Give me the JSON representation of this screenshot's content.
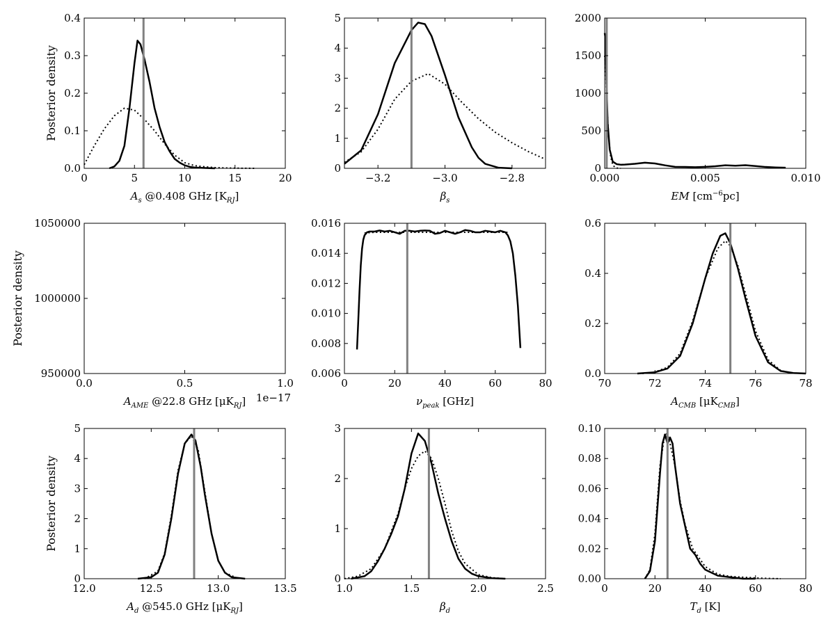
{
  "chart_data": [
    {
      "type": "line",
      "xlabel": "A_s @0.408 GHz [K_RJ]",
      "xlabel_parts": [
        {
          "t": "A",
          "i": true
        },
        {
          "t": "s",
          "sub": true
        },
        {
          "t": " @0.408 GHz [K"
        },
        {
          "t": "RJ",
          "sub": true
        },
        {
          "t": "]"
        }
      ],
      "ylabel": "Posterior density",
      "xlim": [
        0,
        20
      ],
      "ylim": [
        0,
        0.4
      ],
      "xticks": [
        0,
        5,
        10,
        15,
        20
      ],
      "xtick_labels": [
        "0",
        "5",
        "10",
        "15",
        "20"
      ],
      "yticks": [
        0,
        0.1,
        0.2,
        0.3,
        0.4
      ],
      "ytick_labels": [
        "0.0",
        "0.1",
        "0.2",
        "0.3",
        "0.4"
      ],
      "truth": 5.9,
      "series": [
        {
          "style": "solid",
          "x": [
            2.5,
            3.0,
            3.5,
            4.0,
            4.5,
            5.0,
            5.3,
            5.6,
            6.0,
            6.5,
            7.0,
            7.5,
            8.0,
            8.5,
            9.0,
            9.5,
            10.0,
            10.5,
            11.0,
            12.0,
            13.0
          ],
          "y": [
            0.0,
            0.005,
            0.02,
            0.06,
            0.16,
            0.28,
            0.34,
            0.33,
            0.29,
            0.23,
            0.16,
            0.11,
            0.07,
            0.045,
            0.025,
            0.015,
            0.008,
            0.004,
            0.002,
            0.001,
            0.0
          ]
        },
        {
          "style": "dotted",
          "x": [
            0,
            1,
            2,
            3,
            4,
            5,
            6,
            7,
            8,
            9,
            10,
            11,
            12,
            13,
            14,
            15,
            16,
            17
          ],
          "y": [
            0.01,
            0.06,
            0.105,
            0.14,
            0.16,
            0.155,
            0.13,
            0.1,
            0.065,
            0.035,
            0.015,
            0.007,
            0.004,
            0.002,
            0.001,
            0.0005,
            0.0002,
            0.0
          ]
        }
      ]
    },
    {
      "type": "line",
      "xlabel": "β_s",
      "xlabel_parts": [
        {
          "t": "β",
          "i": true
        },
        {
          "t": "s",
          "sub": true
        }
      ],
      "ylabel": "",
      "xlim": [
        -3.3,
        -2.7
      ],
      "ylim": [
        0,
        5
      ],
      "xticks": [
        -3.2,
        -3.0,
        -2.8
      ],
      "xtick_labels": [
        "−3.2",
        "−3.0",
        "−2.8"
      ],
      "yticks": [
        0,
        1,
        2,
        3,
        4,
        5
      ],
      "ytick_labels": [
        "0",
        "1",
        "2",
        "3",
        "4",
        "5"
      ],
      "truth": -3.1,
      "series": [
        {
          "style": "solid",
          "x": [
            -3.3,
            -3.25,
            -3.2,
            -3.15,
            -3.1,
            -3.08,
            -3.06,
            -3.04,
            -3.0,
            -2.96,
            -2.92,
            -2.9,
            -2.88,
            -2.84,
            -2.8
          ],
          "y": [
            0.15,
            0.6,
            1.8,
            3.5,
            4.6,
            4.85,
            4.8,
            4.4,
            3.1,
            1.7,
            0.7,
            0.35,
            0.15,
            0.02,
            0.0
          ]
        },
        {
          "style": "dotted",
          "x": [
            -3.3,
            -3.25,
            -3.2,
            -3.15,
            -3.1,
            -3.05,
            -3.0,
            -2.95,
            -2.9,
            -2.85,
            -2.8,
            -2.75,
            -2.7
          ],
          "y": [
            0.2,
            0.55,
            1.3,
            2.3,
            2.9,
            3.15,
            2.8,
            2.2,
            1.65,
            1.2,
            0.85,
            0.55,
            0.3
          ]
        }
      ]
    },
    {
      "type": "line",
      "xlabel": "EM [cm^-6 pc]",
      "xlabel_parts": [
        {
          "t": "EM",
          "i": true
        },
        {
          "t": " [cm"
        },
        {
          "t": "−6",
          "sup": true
        },
        {
          "t": "pc]"
        }
      ],
      "ylabel": "",
      "xlim": [
        0,
        0.01
      ],
      "ylim": [
        0,
        2000
      ],
      "xticks": [
        0,
        0.005,
        0.01
      ],
      "xtick_labels": [
        "0.000",
        "0.005",
        "0.010"
      ],
      "yticks": [
        0,
        500,
        1000,
        1500,
        2000
      ],
      "ytick_labels": [
        "0",
        "500",
        "1000",
        "1500",
        "2000"
      ],
      "truth": 0.0001,
      "series": [
        {
          "style": "solid",
          "x": [
            0.0,
            3e-05,
            8e-05,
            0.00015,
            0.00025,
            0.0004,
            0.0006,
            0.0008,
            0.001,
            0.0015,
            0.002,
            0.0025,
            0.003,
            0.0035,
            0.004,
            0.0045,
            0.005,
            0.0055,
            0.006,
            0.0065,
            0.007,
            0.0075,
            0.008,
            0.0085,
            0.009
          ],
          "y": [
            1800,
            1750,
            1200,
            600,
            250,
            90,
            55,
            48,
            50,
            60,
            75,
            65,
            40,
            20,
            18,
            15,
            20,
            28,
            40,
            35,
            42,
            30,
            18,
            12,
            8
          ]
        },
        {
          "style": "dotted",
          "x": [
            0.0,
            5e-05,
            0.0001,
            0.0002,
            0.0003,
            0.0004,
            0.0005,
            0.0006,
            0.0008
          ],
          "y": [
            1500,
            1300,
            900,
            400,
            150,
            50,
            15,
            3,
            0
          ]
        }
      ]
    },
    {
      "type": "line",
      "xlabel": "A_AME @22.8 GHz [μK_RJ]",
      "xlabel_parts": [
        {
          "t": "A",
          "i": true
        },
        {
          "t": "AME",
          "sub": true
        },
        {
          "t": " @22.8 GHz [μK"
        },
        {
          "t": "RJ",
          "sub": true
        },
        {
          "t": "]"
        }
      ],
      "ylabel": "Posterior density",
      "xlim": [
        0,
        1
      ],
      "ylim": [
        950000,
        1050000
      ],
      "xticks": [
        0,
        0.5,
        1.0
      ],
      "xtick_labels": [
        "0.0",
        "0.5",
        "1.0"
      ],
      "yticks": [
        950000,
        1000000,
        1050000
      ],
      "ytick_labels": [
        "950000",
        "1000000",
        "1050000"
      ],
      "offset_label": "1e−17",
      "series": []
    },
    {
      "type": "line",
      "xlabel": "ν_peak [GHz]",
      "xlabel_parts": [
        {
          "t": "ν",
          "i": true
        },
        {
          "t": "peak",
          "sub": true
        },
        {
          "t": " [GHz]"
        }
      ],
      "ylabel": "",
      "xlim": [
        0,
        80
      ],
      "ylim": [
        0.006,
        0.016
      ],
      "xticks": [
        0,
        20,
        40,
        60,
        80
      ],
      "xtick_labels": [
        "0",
        "20",
        "40",
        "60",
        "80"
      ],
      "yticks": [
        0.006,
        0.008,
        0.01,
        0.012,
        0.014,
        0.016
      ],
      "ytick_labels": [
        "0.006",
        "0.008",
        "0.010",
        "0.012",
        "0.014",
        "0.016"
      ],
      "truth": 25,
      "series": [
        {
          "style": "solid",
          "x": [
            5,
            5.5,
            6,
            6.5,
            7,
            7.5,
            8,
            9,
            10,
            12,
            14,
            16,
            18,
            20,
            22,
            24,
            26,
            28,
            30,
            32,
            34,
            36,
            38,
            40,
            42,
            44,
            46,
            48,
            50,
            52,
            54,
            56,
            58,
            60,
            62,
            64,
            65,
            66,
            67,
            68,
            69,
            70
          ],
          "y": [
            0.0076,
            0.0095,
            0.0115,
            0.0132,
            0.0143,
            0.0149,
            0.0152,
            0.0154,
            0.01545,
            0.01545,
            0.01552,
            0.01545,
            0.0155,
            0.0154,
            0.0153,
            0.0155,
            0.0155,
            0.01545,
            0.0155,
            0.01552,
            0.0155,
            0.0153,
            0.01535,
            0.0155,
            0.0154,
            0.0153,
            0.0154,
            0.01555,
            0.0155,
            0.0154,
            0.0154,
            0.0155,
            0.01545,
            0.0154,
            0.0155,
            0.0154,
            0.0152,
            0.0148,
            0.014,
            0.0125,
            0.0105,
            0.0077
          ]
        },
        {
          "style": "dotted",
          "x": [
            8,
            12,
            20,
            30,
            40,
            50,
            60,
            65
          ],
          "y": [
            0.01535,
            0.0154,
            0.0154,
            0.0154,
            0.0154,
            0.0154,
            0.0154,
            0.0154
          ]
        }
      ]
    },
    {
      "type": "line",
      "xlabel": "A_CMB [μK_CMB]",
      "xlabel_parts": [
        {
          "t": "A",
          "i": true
        },
        {
          "t": "CMB",
          "sub": true
        },
        {
          "t": " [μK"
        },
        {
          "t": "CMB",
          "sub": true
        },
        {
          "t": "]"
        }
      ],
      "ylabel": "",
      "xlim": [
        70,
        78
      ],
      "ylim": [
        0,
        0.6
      ],
      "xticks": [
        70,
        72,
        74,
        76,
        78
      ],
      "xtick_labels": [
        "70",
        "72",
        "74",
        "76",
        "78"
      ],
      "yticks": [
        0,
        0.2,
        0.4,
        0.6
      ],
      "ytick_labels": [
        "0.0",
        "0.2",
        "0.4",
        "0.6"
      ],
      "truth": 75.0,
      "series": [
        {
          "style": "solid",
          "x": [
            71.3,
            72.0,
            72.5,
            73.0,
            73.5,
            74.0,
            74.3,
            74.6,
            74.8,
            75.0,
            75.3,
            75.6,
            76.0,
            76.5,
            77.0,
            77.5,
            78.0
          ],
          "y": [
            0.0,
            0.005,
            0.02,
            0.07,
            0.2,
            0.38,
            0.48,
            0.55,
            0.56,
            0.52,
            0.42,
            0.3,
            0.15,
            0.045,
            0.01,
            0.002,
            0.0
          ]
        },
        {
          "style": "dotted",
          "x": [
            71.5,
            72.0,
            72.5,
            73.0,
            73.5,
            74.0,
            74.5,
            74.8,
            75.0,
            75.3,
            75.6,
            76.0,
            76.5,
            77.0,
            77.5
          ],
          "y": [
            0.0,
            0.006,
            0.025,
            0.08,
            0.21,
            0.38,
            0.5,
            0.53,
            0.51,
            0.43,
            0.32,
            0.17,
            0.055,
            0.012,
            0.0
          ]
        }
      ]
    },
    {
      "type": "line",
      "xlabel": "A_d @545.0 GHz [μK_RJ]",
      "xlabel_parts": [
        {
          "t": "A",
          "i": true
        },
        {
          "t": "d",
          "sub": true
        },
        {
          "t": " @545.0 GHz [μK"
        },
        {
          "t": "RJ",
          "sub": true
        },
        {
          "t": "]"
        }
      ],
      "ylabel": "Posterior density",
      "xlim": [
        12.0,
        13.5
      ],
      "ylim": [
        0,
        5
      ],
      "xticks": [
        12.0,
        12.5,
        13.0,
        13.5
      ],
      "xtick_labels": [
        "12.0",
        "12.5",
        "13.0",
        "13.5"
      ],
      "yticks": [
        0,
        1,
        2,
        3,
        4,
        5
      ],
      "ytick_labels": [
        "0",
        "1",
        "2",
        "3",
        "4",
        "5"
      ],
      "truth": 12.82,
      "series": [
        {
          "style": "solid",
          "x": [
            12.4,
            12.5,
            12.55,
            12.6,
            12.65,
            12.7,
            12.75,
            12.8,
            12.83,
            12.87,
            12.9,
            12.95,
            13.0,
            13.05,
            13.1,
            13.2
          ],
          "y": [
            0.0,
            0.05,
            0.2,
            0.8,
            2.0,
            3.5,
            4.5,
            4.8,
            4.6,
            3.7,
            2.8,
            1.5,
            0.6,
            0.2,
            0.05,
            0.0
          ]
        },
        {
          "style": "dotted",
          "x": [
            12.45,
            12.55,
            12.6,
            12.65,
            12.7,
            12.75,
            12.8,
            12.85,
            12.9,
            12.95,
            13.0,
            13.05,
            13.15
          ],
          "y": [
            0.0,
            0.25,
            0.85,
            2.1,
            3.6,
            4.5,
            4.75,
            4.3,
            2.9,
            1.5,
            0.6,
            0.2,
            0.0
          ]
        }
      ]
    },
    {
      "type": "line",
      "xlabel": "β_d",
      "xlabel_parts": [
        {
          "t": "β",
          "i": true
        },
        {
          "t": "d",
          "sub": true
        }
      ],
      "ylabel": "",
      "xlim": [
        1.0,
        2.5
      ],
      "ylim": [
        0,
        3
      ],
      "xticks": [
        1.0,
        1.5,
        2.0,
        2.5
      ],
      "xtick_labels": [
        "1.0",
        "1.5",
        "2.0",
        "2.5"
      ],
      "yticks": [
        0,
        1,
        2,
        3
      ],
      "ytick_labels": [
        "0",
        "1",
        "2",
        "3"
      ],
      "truth": 1.63,
      "series": [
        {
          "style": "solid",
          "x": [
            1.05,
            1.15,
            1.2,
            1.25,
            1.3,
            1.35,
            1.4,
            1.45,
            1.5,
            1.55,
            1.6,
            1.65,
            1.7,
            1.75,
            1.8,
            1.85,
            1.9,
            1.95,
            2.0,
            2.1,
            2.2
          ],
          "y": [
            0.0,
            0.05,
            0.15,
            0.35,
            0.6,
            0.9,
            1.25,
            1.8,
            2.5,
            2.9,
            2.75,
            2.3,
            1.7,
            1.2,
            0.75,
            0.4,
            0.2,
            0.1,
            0.05,
            0.01,
            0.0
          ]
        },
        {
          "style": "dotted",
          "x": [
            1.0,
            1.1,
            1.2,
            1.3,
            1.4,
            1.45,
            1.5,
            1.55,
            1.6,
            1.65,
            1.7,
            1.75,
            1.8,
            1.85,
            1.9,
            2.0,
            2.1,
            2.2
          ],
          "y": [
            0.0,
            0.05,
            0.2,
            0.6,
            1.3,
            1.8,
            2.2,
            2.45,
            2.55,
            2.4,
            2.0,
            1.5,
            0.95,
            0.55,
            0.3,
            0.08,
            0.02,
            0.0
          ]
        }
      ]
    },
    {
      "type": "line",
      "xlabel": "T_d [K]",
      "xlabel_parts": [
        {
          "t": "T",
          "i": true
        },
        {
          "t": "d",
          "sub": true
        },
        {
          "t": " [K]"
        }
      ],
      "ylabel": "",
      "xlim": [
        0,
        80
      ],
      "ylim": [
        0,
        0.1
      ],
      "xticks": [
        0,
        20,
        40,
        60,
        80
      ],
      "xtick_labels": [
        "0",
        "20",
        "40",
        "60",
        "80"
      ],
      "yticks": [
        0,
        0.02,
        0.04,
        0.06,
        0.08,
        0.1
      ],
      "ytick_labels": [
        "0.00",
        "0.02",
        "0.04",
        "0.06",
        "0.08",
        "0.10"
      ],
      "truth": 25,
      "series": [
        {
          "style": "solid",
          "x": [
            16,
            18,
            20,
            22,
            23,
            24,
            25,
            26,
            27,
            28,
            30,
            32,
            34,
            36,
            38,
            40,
            45,
            50,
            55,
            60
          ],
          "y": [
            0.0,
            0.005,
            0.025,
            0.07,
            0.09,
            0.096,
            0.09,
            0.094,
            0.09,
            0.075,
            0.05,
            0.035,
            0.02,
            0.016,
            0.01,
            0.006,
            0.002,
            0.001,
            0.0,
            0.0
          ]
        },
        {
          "style": "dotted",
          "x": [
            16,
            18,
            20,
            22,
            24,
            25,
            26,
            28,
            30,
            32,
            35,
            40,
            45,
            50,
            55,
            60,
            65,
            70
          ],
          "y": [
            0.0,
            0.006,
            0.03,
            0.075,
            0.097,
            0.096,
            0.09,
            0.075,
            0.052,
            0.036,
            0.02,
            0.008,
            0.003,
            0.0015,
            0.001,
            0.0005,
            0.0002,
            0.0
          ]
        }
      ]
    }
  ]
}
